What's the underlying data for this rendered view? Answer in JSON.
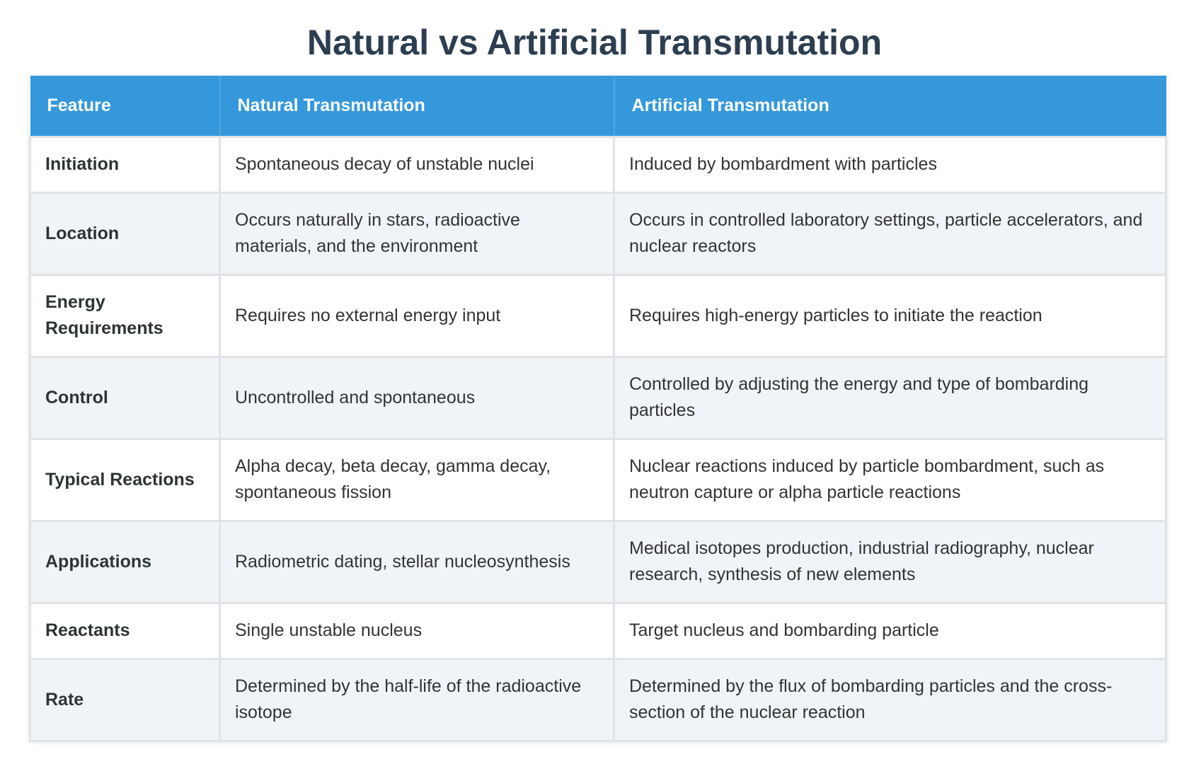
{
  "title": "Natural vs Artificial Transmutation",
  "table": {
    "headers": [
      "Feature",
      "Natural Transmutation",
      "Artificial Transmutation"
    ],
    "rows": [
      {
        "feature": "Initiation",
        "natural": "Spontaneous decay of unstable nuclei",
        "artificial": "Induced by bombardment with particles"
      },
      {
        "feature": "Location",
        "natural": "Occurs naturally in stars, radioactive materials, and the environment",
        "artificial": "Occurs in controlled laboratory settings, particle accelerators, and nuclear reactors"
      },
      {
        "feature": "Energy Requirements",
        "natural": "Requires no external energy input",
        "artificial": "Requires high-energy particles to initiate the reaction"
      },
      {
        "feature": "Control",
        "natural": "Uncontrolled and spontaneous",
        "artificial": "Controlled by adjusting the energy and type of bombarding particles"
      },
      {
        "feature": "Typical Reactions",
        "natural": "Alpha decay, beta decay, gamma decay, spontaneous fission",
        "artificial": "Nuclear reactions induced by particle bombardment, such as neutron capture or alpha particle reactions"
      },
      {
        "feature": "Applications",
        "natural": "Radiometric dating, stellar nucleosynthesis",
        "artificial": "Medical isotopes production, industrial radiography, nuclear research, synthesis of new elements"
      },
      {
        "feature": "Reactants",
        "natural": "Single unstable nucleus",
        "artificial": "Target nucleus and bombarding particle"
      },
      {
        "feature": "Rate",
        "natural": "Determined by the half-life of the radioactive isotope",
        "artificial": "Determined by the flux of bombarding particles and the cross-section of the nuclear reaction"
      }
    ]
  },
  "colors": {
    "header_bg": "#3598db",
    "title": "#2c3e50",
    "row_alt": "#f0f4f8",
    "border": "#dfe3e6"
  }
}
